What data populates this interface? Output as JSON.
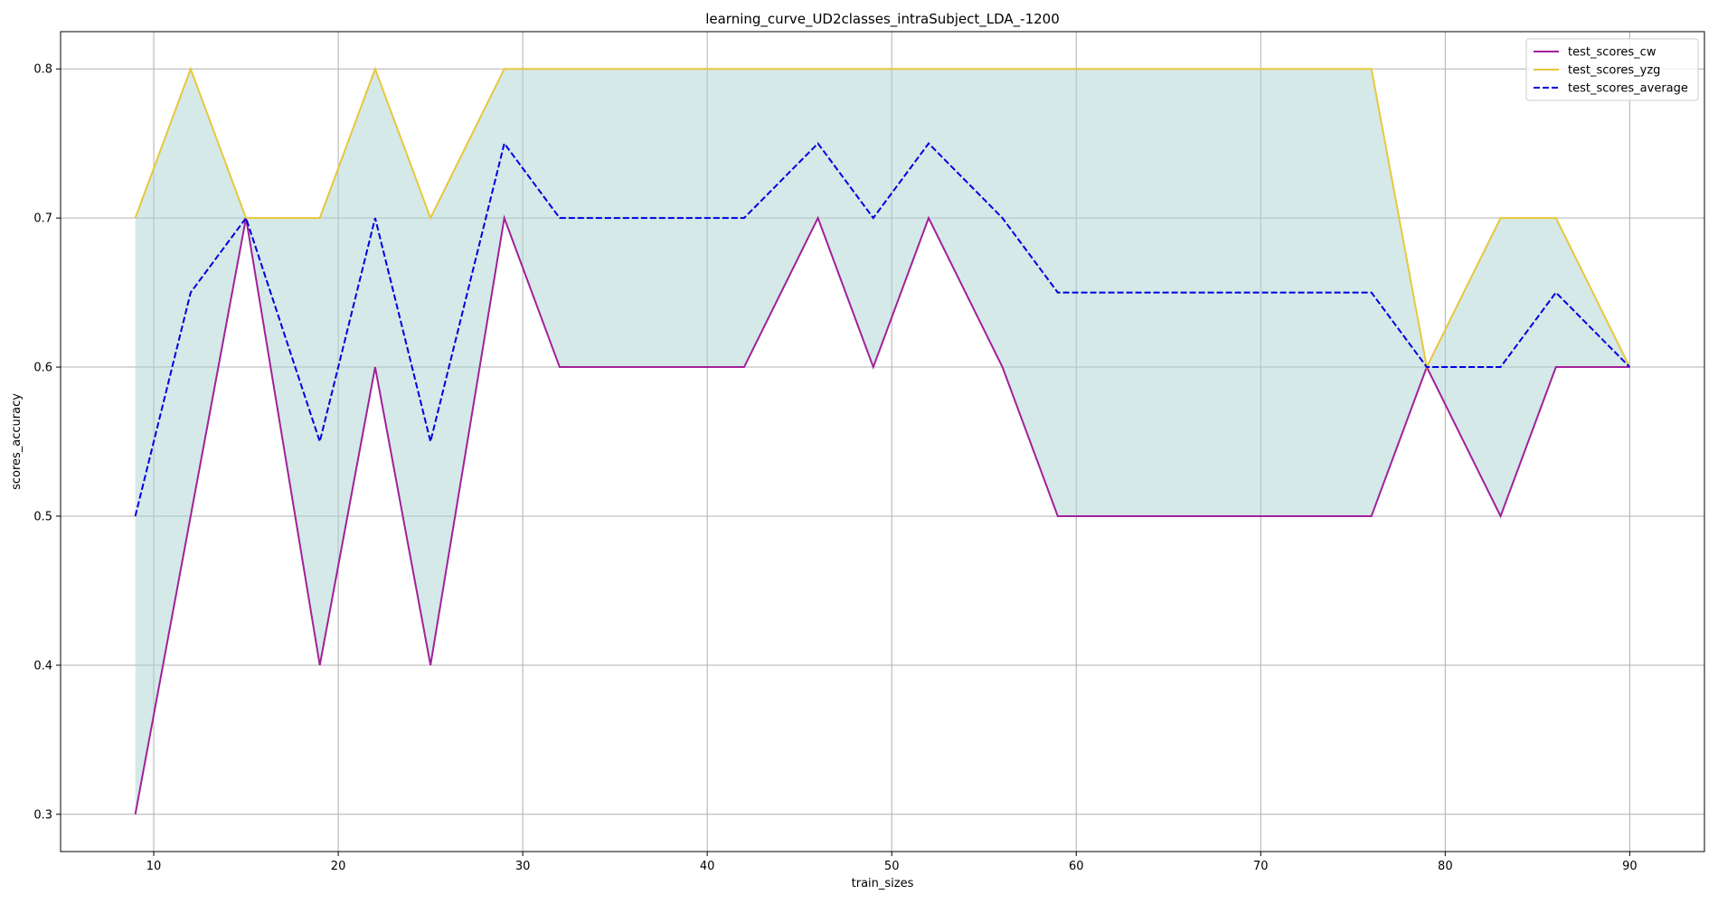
{
  "chart_data": {
    "type": "line",
    "title": "learning_curve_UD2classes_intraSubject_LDA_-1200",
    "xlabel": "train_sizes",
    "ylabel": "scores_accuracy",
    "x": [
      9,
      12,
      15,
      19,
      22,
      25,
      29,
      32,
      36,
      39,
      42,
      46,
      49,
      52,
      56,
      59,
      63,
      66,
      69,
      73,
      76,
      79,
      83,
      86,
      90
    ],
    "series": [
      {
        "name": "test_scores_cw",
        "color": "#a2209a",
        "style": "solid",
        "values": [
          0.3,
          0.5,
          0.7,
          0.4,
          0.6,
          0.4,
          0.7,
          0.6,
          0.6,
          0.6,
          0.6,
          0.7,
          0.6,
          0.7,
          0.6,
          0.5,
          0.5,
          0.5,
          0.5,
          0.5,
          0.5,
          0.6,
          0.5,
          0.6,
          0.6
        ]
      },
      {
        "name": "test_scores_yzg",
        "color": "#e8c73c",
        "style": "solid",
        "values": [
          0.7,
          0.8,
          0.7,
          0.7,
          0.8,
          0.7,
          0.8,
          0.8,
          0.8,
          0.8,
          0.8,
          0.8,
          0.8,
          0.8,
          0.8,
          0.8,
          0.8,
          0.8,
          0.8,
          0.8,
          0.8,
          0.6,
          0.7,
          0.7,
          0.6
        ]
      },
      {
        "name": "test_scores_average",
        "color": "#0000dd",
        "style": "dashed",
        "values": [
          0.5,
          0.65,
          0.7,
          0.55,
          0.7,
          0.55,
          0.75,
          0.7,
          0.7,
          0.7,
          0.7,
          0.75,
          0.7,
          0.75,
          0.7,
          0.65,
          0.65,
          0.65,
          0.65,
          0.65,
          0.65,
          0.6,
          0.6,
          0.65,
          0.6
        ]
      }
    ],
    "fill_between": {
      "lower": "test_scores_cw",
      "upper": "test_scores_yzg",
      "color": "#a9d3d1",
      "opacity": 0.5
    },
    "xlim": [
      4.95,
      94.05
    ],
    "ylim": [
      0.275,
      0.825
    ],
    "xticks": [
      10,
      20,
      30,
      40,
      50,
      60,
      70,
      80,
      90
    ],
    "yticks": [
      0.3,
      0.4,
      0.5,
      0.6,
      0.7,
      0.8
    ],
    "grid": true,
    "legend_position": "top-right"
  }
}
